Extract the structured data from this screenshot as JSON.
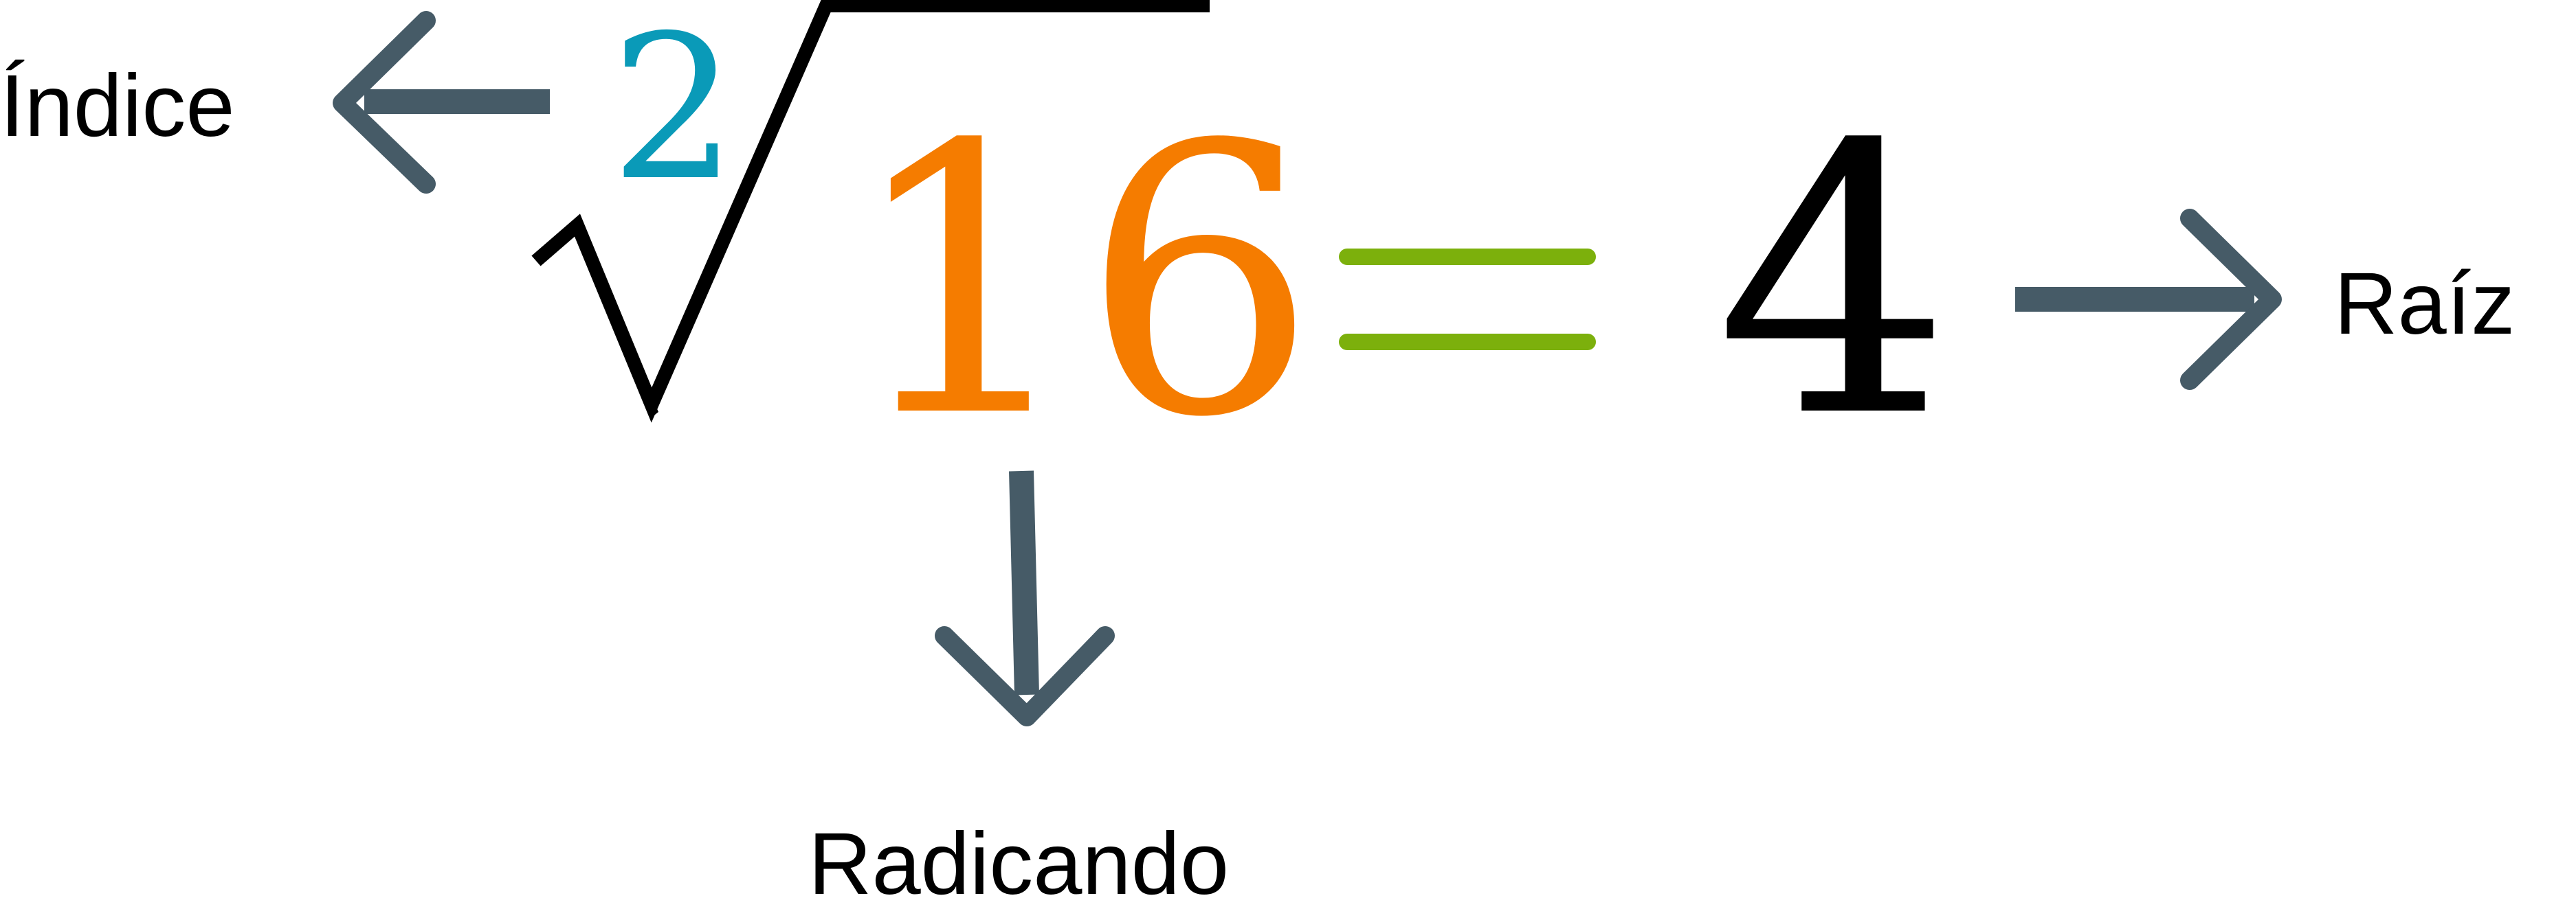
{
  "expression": {
    "index": "2",
    "radicand": "16",
    "equals": "=",
    "root": "4"
  },
  "labels": {
    "index": "Índice",
    "radicand": "Radicando",
    "root": "Raíz"
  },
  "colors": {
    "index": "#0a9ab8",
    "radicand": "#f57c00",
    "equals": "#7cb00c",
    "arrow": "#465b67",
    "text": "#000000"
  },
  "icons": {
    "index_arrow": "arrow-left-icon",
    "radicand_arrow": "arrow-down-icon",
    "root_arrow": "arrow-right-icon",
    "radical": "radical-sign-icon"
  }
}
